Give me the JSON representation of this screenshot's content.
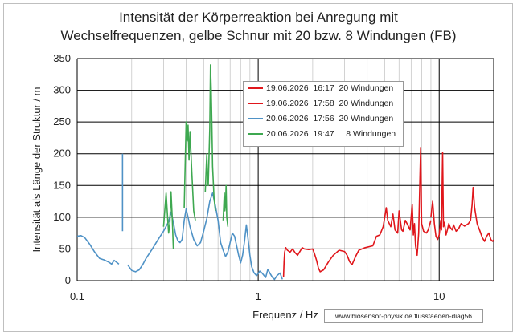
{
  "chart_data": {
    "type": "line",
    "title_lines": [
      "Intensität der Körperreaktion bei Anregung mit",
      "Wechselfrequenzen, gelbe Schnur mit 20 bzw.  8  Windungen  (FB)"
    ],
    "xlabel": "Frequenz / Hz",
    "ylabel": "Intensität  als Länge der Struktur / m",
    "x_scale": "log",
    "xlim": [
      0.1,
      20
    ],
    "ylim": [
      0,
      350
    ],
    "x_ticks": [
      {
        "value": 0.1,
        "label": "0.1"
      },
      {
        "value": 1,
        "label": "1"
      },
      {
        "value": 10,
        "label": "10"
      }
    ],
    "y_ticks": [
      0,
      50,
      100,
      150,
      200,
      250,
      300,
      350
    ],
    "grid": "major and minor vertical, major horizontal",
    "legend_position": "upper-center",
    "series": [
      {
        "name": "19.06.2026  16:17  20 Windungen",
        "color": "#e0161b",
        "points": [
          [
            1.38,
            5
          ],
          [
            1.39,
            30
          ],
          [
            1.4,
            45
          ],
          [
            1.42,
            52
          ],
          [
            1.45,
            48
          ],
          [
            1.5,
            45
          ],
          [
            1.55,
            50
          ],
          [
            1.6,
            44
          ],
          [
            1.65,
            40
          ],
          [
            1.7,
            46
          ],
          [
            1.75,
            52
          ],
          [
            1.8,
            50
          ],
          [
            1.9,
            49
          ],
          [
            2.0,
            50
          ],
          [
            2.05,
            42
          ],
          [
            2.1,
            32
          ],
          [
            2.15,
            20
          ],
          [
            2.2,
            14
          ],
          [
            2.3,
            17
          ],
          [
            2.45,
            30
          ],
          [
            2.6,
            40
          ],
          [
            2.8,
            48
          ],
          [
            3.0,
            46
          ],
          [
            3.1,
            40
          ],
          [
            3.2,
            30
          ],
          [
            3.3,
            25
          ],
          [
            3.45,
            38
          ],
          [
            3.6,
            48
          ],
          [
            3.9,
            52
          ],
          [
            4.3,
            55
          ],
          [
            4.5,
            70
          ],
          [
            4.7,
            72
          ],
          [
            4.9,
            85
          ],
          [
            5.0,
            100
          ],
          [
            5.1,
            115
          ],
          [
            5.2,
            95
          ],
          [
            5.4,
            85
          ],
          [
            5.55,
            105
          ],
          [
            5.7,
            80
          ],
          [
            5.9,
            75
          ],
          [
            6.0,
            110
          ],
          [
            6.2,
            80
          ],
          [
            6.3,
            78
          ],
          [
            6.5,
            95
          ],
          [
            6.7,
            88
          ],
          [
            6.9,
            80
          ],
          [
            7.1,
            120
          ],
          [
            7.2,
            72
          ],
          [
            7.3,
            90
          ],
          [
            7.4,
            55
          ],
          [
            7.55,
            40
          ],
          [
            7.7,
            75
          ],
          [
            7.9,
            210
          ],
          [
            8.0,
            90
          ],
          [
            8.2,
            78
          ],
          [
            8.5,
            75
          ],
          [
            8.7,
            80
          ],
          [
            9.0,
            95
          ]
        ]
      },
      {
        "name": "19.06.2026  17:58  20 Windungen",
        "color": "#e0161b",
        "points": [
          [
            9.0,
            100
          ],
          [
            9.2,
            125
          ],
          [
            9.4,
            90
          ],
          [
            9.6,
            70
          ],
          [
            9.8,
            65
          ],
          [
            10.0,
            72
          ],
          [
            10.2,
            95
          ],
          [
            10.3,
            80
          ],
          [
            10.45,
            202
          ],
          [
            10.55,
            85
          ],
          [
            10.7,
            92
          ],
          [
            10.9,
            72
          ],
          [
            11.1,
            80
          ],
          [
            11.3,
            90
          ],
          [
            11.5,
            84
          ],
          [
            11.8,
            80
          ],
          [
            12.0,
            88
          ],
          [
            12.4,
            78
          ],
          [
            12.8,
            82
          ],
          [
            13.2,
            90
          ],
          [
            13.8,
            86
          ],
          [
            14.5,
            90
          ],
          [
            14.9,
            95
          ],
          [
            15.2,
            120
          ],
          [
            15.4,
            147
          ],
          [
            15.7,
            115
          ],
          [
            16.2,
            90
          ],
          [
            16.8,
            78
          ],
          [
            17.3,
            68
          ],
          [
            17.8,
            62
          ],
          [
            18.3,
            70
          ],
          [
            18.8,
            75
          ],
          [
            19.3,
            65
          ],
          [
            19.7,
            62
          ],
          [
            20.0,
            64
          ]
        ]
      },
      {
        "name": "20.06.2026  17:56  20 Windungen",
        "color": "#4f92c6",
        "points": [
          [
            0.1,
            70
          ],
          [
            0.105,
            71
          ],
          [
            0.11,
            68
          ],
          [
            0.117,
            58
          ],
          [
            0.125,
            45
          ],
          [
            0.133,
            35
          ],
          [
            0.14,
            33
          ],
          [
            0.15,
            29
          ],
          [
            0.155,
            26
          ],
          [
            0.16,
            32
          ],
          [
            0.165,
            29
          ],
          [
            0.17,
            26
          ],
          [
            0.178,
            null
          ],
          [
            0.178,
            78
          ],
          [
            0.178,
            200
          ],
          [
            0.178,
            null
          ],
          [
            0.19,
            25
          ],
          [
            0.2,
            16
          ],
          [
            0.21,
            14
          ],
          [
            0.22,
            17
          ],
          [
            0.23,
            25
          ],
          [
            0.24,
            35
          ],
          [
            0.26,
            50
          ],
          [
            0.28,
            65
          ],
          [
            0.3,
            78
          ],
          [
            0.32,
            93
          ],
          [
            0.33,
            108
          ],
          [
            0.34,
            92
          ],
          [
            0.35,
            72
          ],
          [
            0.36,
            63
          ],
          [
            0.37,
            60
          ],
          [
            0.38,
            65
          ],
          [
            0.39,
            95
          ],
          [
            0.4,
            113
          ],
          [
            0.41,
            100
          ],
          [
            0.42,
            85
          ],
          [
            0.44,
            65
          ],
          [
            0.46,
            55
          ],
          [
            0.48,
            60
          ],
          [
            0.5,
            78
          ],
          [
            0.52,
            98
          ],
          [
            0.54,
            125
          ],
          [
            0.56,
            138
          ],
          [
            0.58,
            118
          ],
          [
            0.6,
            95
          ],
          [
            0.62,
            60
          ],
          [
            0.64,
            48
          ],
          [
            0.66,
            38
          ],
          [
            0.68,
            45
          ],
          [
            0.7,
            60
          ],
          [
            0.72,
            75
          ],
          [
            0.74,
            70
          ],
          [
            0.76,
            55
          ],
          [
            0.78,
            40
          ],
          [
            0.8,
            28
          ],
          [
            0.82,
            40
          ],
          [
            0.84,
            62
          ],
          [
            0.86,
            88
          ],
          [
            0.88,
            65
          ],
          [
            0.9,
            40
          ],
          [
            0.92,
            22
          ],
          [
            0.95,
            12
          ],
          [
            0.98,
            8
          ],
          [
            1.02,
            15
          ],
          [
            1.05,
            12
          ],
          [
            1.1,
            5
          ],
          [
            1.13,
            18
          ],
          [
            1.17,
            10
          ],
          [
            1.2,
            5
          ],
          [
            1.23,
            2
          ],
          [
            1.27,
            8
          ],
          [
            1.32,
            12
          ],
          [
            1.36,
            2
          ]
        ]
      },
      {
        "name": "20.06.2026  19:47     8 Windungen",
        "color": "#3ea850",
        "points": [
          [
            0.3,
            85
          ],
          [
            0.31,
            138
          ],
          [
            0.315,
            105
          ],
          [
            0.32,
            75
          ],
          [
            0.325,
            90
          ],
          [
            0.33,
            140
          ],
          [
            0.335,
            100
          ],
          [
            0.34,
            50
          ],
          [
            0.345,
            null
          ],
          [
            0.385,
            null
          ],
          [
            0.39,
            115
          ],
          [
            0.4,
            250
          ],
          [
            0.405,
            220
          ],
          [
            0.41,
            245
          ],
          [
            0.415,
            190
          ],
          [
            0.42,
            235
          ],
          [
            0.43,
            170
          ],
          [
            0.44,
            110
          ],
          [
            0.45,
            95
          ],
          [
            0.46,
            null
          ],
          [
            0.505,
            null
          ],
          [
            0.51,
            140
          ],
          [
            0.52,
            200
          ],
          [
            0.525,
            160
          ],
          [
            0.53,
            150
          ],
          [
            0.54,
            240
          ],
          [
            0.545,
            340
          ],
          [
            0.55,
            300
          ],
          [
            0.555,
            240
          ],
          [
            0.56,
            180
          ],
          [
            0.57,
            130
          ],
          [
            0.58,
            110
          ],
          [
            0.59,
            null
          ],
          [
            0.635,
            null
          ],
          [
            0.64,
            95
          ],
          [
            0.65,
            138
          ],
          [
            0.655,
            110
          ],
          [
            0.66,
            120
          ],
          [
            0.665,
            150
          ],
          [
            0.67,
            100
          ],
          [
            0.68,
            85
          ]
        ]
      }
    ]
  },
  "legend": {
    "entries": [
      {
        "label": "19.06.2026  16:17  20 Windungen",
        "color": "#e0161b"
      },
      {
        "label": "19.06.2026  17:58  20 Windungen",
        "color": "#e0161b"
      },
      {
        "label": "20.06.2026  17:56  20 Windungen",
        "color": "#4f92c6"
      },
      {
        "label": "20.06.2026  19:47     8 Windungen",
        "color": "#3ea850"
      }
    ]
  },
  "watermark": "www.biosensor-physik.de  flussfaeden-diag56"
}
